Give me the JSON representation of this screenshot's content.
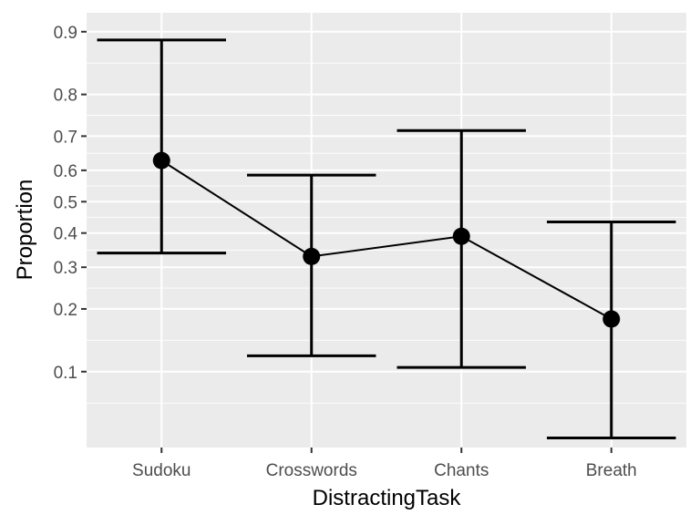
{
  "chart_data": {
    "type": "line",
    "xlabel": "DistractingTask",
    "ylabel": "Proportion",
    "categories": [
      "Sudoku",
      "Crosswords",
      "Chants",
      "Breath"
    ],
    "points": [
      0.63,
      0.33,
      0.39,
      0.18
    ],
    "error_lower": [
      0.34,
      0.12,
      0.105,
      0.045
    ],
    "error_upper": [
      0.89,
      0.585,
      0.715,
      0.435
    ],
    "y_ticks": [
      0.1,
      0.2,
      0.3,
      0.4,
      0.5,
      0.6,
      0.7,
      0.8,
      0.9
    ],
    "y_tick_labels": [
      "0.1",
      "0.2",
      "0.3",
      "0.4",
      "0.5",
      "0.6",
      "0.7",
      "0.8",
      "0.9"
    ],
    "y_scale": "logit",
    "ylim": [
      0.04,
      0.92
    ],
    "grid": true,
    "panel_background": "#ebebeb",
    "grid_color": "#ffffff",
    "series_color": "#000000"
  }
}
